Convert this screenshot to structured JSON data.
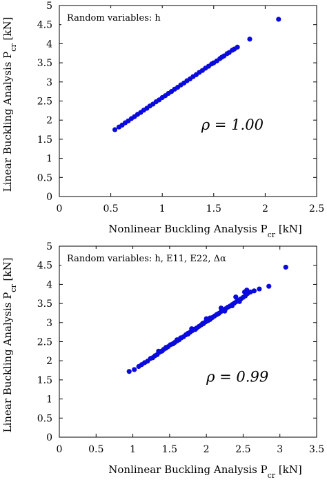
{
  "chart_data": [
    {
      "type": "scatter",
      "legend_text": "Random variables: h",
      "annotation": "ρ = 1.00",
      "xlabel": "Nonlinear Buckling Analysis P",
      "xlabel_sub": "cr",
      "xlabel_unit": " [kN]",
      "ylabel": "Linear Buckling Analysis P",
      "ylabel_sub": "cr",
      "ylabel_unit": " [kN]",
      "xlim": [
        0,
        2.5
      ],
      "ylim": [
        0,
        5
      ],
      "xticks": [
        "0",
        "0.5",
        "1",
        "1.5",
        "2",
        "2.5"
      ],
      "yticks": [
        "0",
        "0.5",
        "1",
        "1.5",
        "2",
        "2.5",
        "3",
        "3.5",
        "4",
        "4.5",
        "5"
      ],
      "legend_position": "top-left",
      "point_color": "#0a0adc",
      "x": [
        0.54,
        0.58,
        0.61,
        0.64,
        0.67,
        0.7,
        0.73,
        0.76,
        0.79,
        0.82,
        0.85,
        0.88,
        0.91,
        0.94,
        0.97,
        1.0,
        1.03,
        1.06,
        1.09,
        1.12,
        1.15,
        1.18,
        1.21,
        1.24,
        1.27,
        1.3,
        1.33,
        1.36,
        1.39,
        1.42,
        1.45,
        1.48,
        1.5,
        1.53,
        1.56,
        1.58,
        1.6,
        1.63,
        1.65,
        1.68,
        1.7,
        1.73,
        1.85,
        2.13
      ],
      "y": [
        1.75,
        1.82,
        1.87,
        1.93,
        1.98,
        2.04,
        2.09,
        2.15,
        2.2,
        2.26,
        2.31,
        2.37,
        2.42,
        2.48,
        2.53,
        2.59,
        2.64,
        2.7,
        2.75,
        2.81,
        2.86,
        2.92,
        2.97,
        3.03,
        3.08,
        3.14,
        3.19,
        3.25,
        3.3,
        3.36,
        3.41,
        3.47,
        3.5,
        3.55,
        3.61,
        3.65,
        3.68,
        3.74,
        3.77,
        3.83,
        3.86,
        3.91,
        4.12,
        4.64
      ]
    },
    {
      "type": "scatter",
      "legend_text": "Random variables: h, E11, E22, Δα",
      "annotation": "ρ = 0.99",
      "xlabel": "Nonlinear Buckling Analysis P",
      "xlabel_sub": "cr",
      "xlabel_unit": " [kN]",
      "ylabel": "Linear Buckling Analysis P",
      "ylabel_sub": "cr",
      "ylabel_unit": " [kN]",
      "xlim": [
        0,
        3.5
      ],
      "ylim": [
        0,
        5
      ],
      "xticks": [
        "0",
        "0.5",
        "1",
        "1.5",
        "2",
        "2.5",
        "3",
        "3.5"
      ],
      "yticks": [
        "0",
        "0.5",
        "1",
        "1.5",
        "2",
        "2.5",
        "3",
        "3.5",
        "4",
        "4.5",
        "5"
      ],
      "legend_position": "top-left",
      "point_color": "#0a0adc",
      "x": [
        0.95,
        1.02,
        1.08,
        1.12,
        1.16,
        1.2,
        1.24,
        1.27,
        1.3,
        1.33,
        1.36,
        1.39,
        1.42,
        1.45,
        1.48,
        1.51,
        1.54,
        1.57,
        1.6,
        1.63,
        1.66,
        1.69,
        1.72,
        1.75,
        1.78,
        1.81,
        1.84,
        1.87,
        1.9,
        1.93,
        1.96,
        1.99,
        2.02,
        2.05,
        2.08,
        2.11,
        2.14,
        2.17,
        2.2,
        2.23,
        2.26,
        2.29,
        2.32,
        2.35,
        2.38,
        2.41,
        2.44,
        2.47,
        2.5,
        2.53,
        2.56,
        2.6,
        2.65,
        2.72,
        2.85,
        3.08,
        1.35,
        1.45,
        1.55,
        1.65,
        1.75,
        1.85,
        1.95,
        2.05,
        2.15,
        2.25,
        2.35,
        2.45,
        1.4,
        1.6,
        1.8,
        2.0,
        2.2,
        2.4,
        2.55,
        2.52
      ],
      "y": [
        1.72,
        1.77,
        1.85,
        1.9,
        1.95,
        1.99,
        2.06,
        2.08,
        2.13,
        2.16,
        2.22,
        2.25,
        2.3,
        2.33,
        2.37,
        2.42,
        2.44,
        2.48,
        2.52,
        2.55,
        2.6,
        2.63,
        2.68,
        2.7,
        2.75,
        2.79,
        2.83,
        2.86,
        2.9,
        2.94,
        2.97,
        3.02,
        3.05,
        3.08,
        3.13,
        3.17,
        3.21,
        3.24,
        3.29,
        3.32,
        3.36,
        3.4,
        3.43,
        3.47,
        3.51,
        3.55,
        3.59,
        3.62,
        3.66,
        3.7,
        3.76,
        3.8,
        3.83,
        3.88,
        3.95,
        4.45,
        2.25,
        2.35,
        2.45,
        2.6,
        2.72,
        2.82,
        2.98,
        3.12,
        3.22,
        3.3,
        3.44,
        3.55,
        2.26,
        2.55,
        2.84,
        3.1,
        3.38,
        3.67,
        3.85,
        3.8
      ]
    }
  ]
}
